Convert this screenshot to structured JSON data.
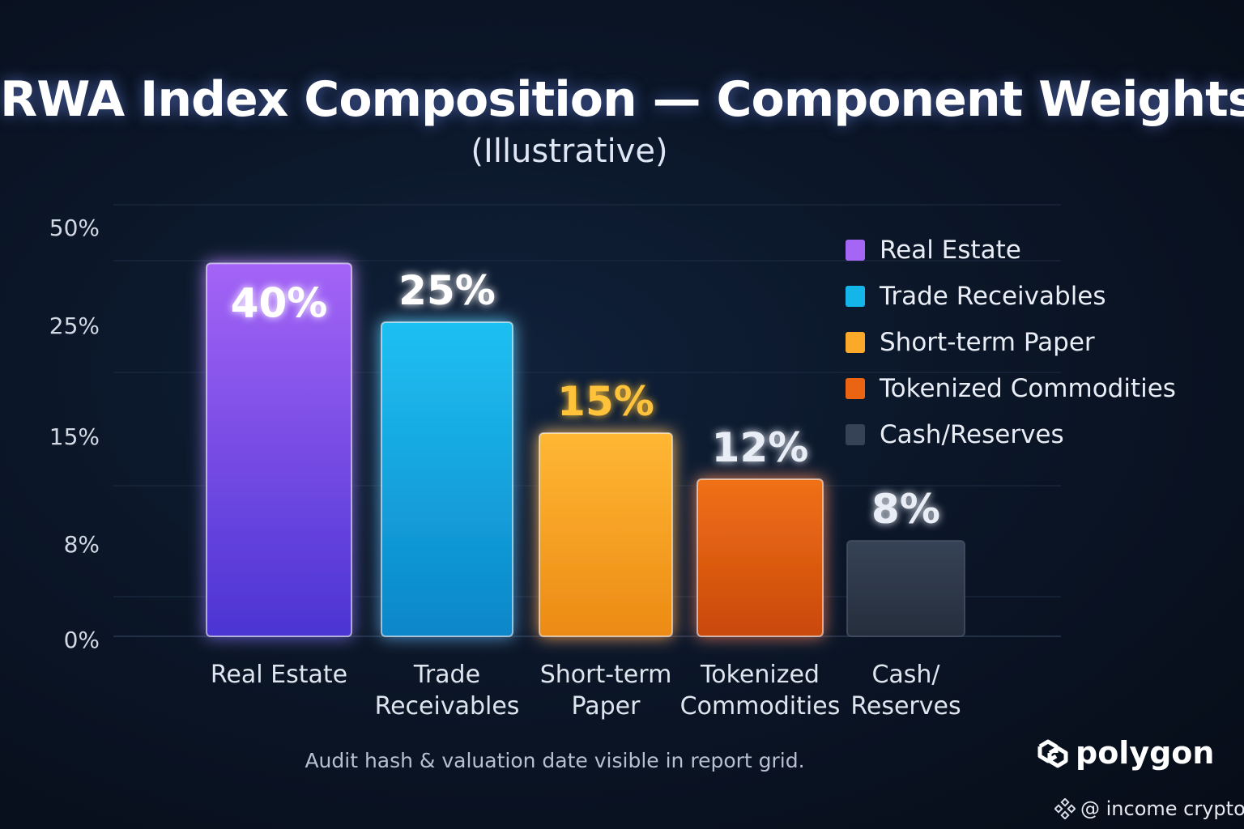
{
  "header": {
    "title": "RWA Index Composition — Component Weights",
    "subtitle": "(Illustrative)"
  },
  "chart_data": {
    "type": "bar",
    "title": "RWA Index Composition — Component Weights",
    "subtitle": "(Illustrative)",
    "categories": [
      "Real Estate",
      "Trade Receivables",
      "Short-term Paper",
      "Tokenized Commodities",
      "Cash/Reserves"
    ],
    "category_label_lines": [
      [
        "Real Estate"
      ],
      [
        "Trade",
        "Receivables"
      ],
      [
        "Short-term",
        "Paper"
      ],
      [
        "Tokenized",
        "Commodities"
      ],
      [
        "Cash/",
        "Reserves"
      ]
    ],
    "values": [
      40,
      25,
      15,
      12,
      8
    ],
    "value_labels": [
      "40%",
      "25%",
      "15%",
      "12%",
      "8%"
    ],
    "colors": [
      "#8e4df0",
      "#14b6ea",
      "#fba92a",
      "#ea6412",
      "#2f3a4b"
    ],
    "value_label_colors": [
      "#ffffff",
      "#ffffff",
      "#ffc23a",
      "#e9edf5",
      "#e9edf5"
    ],
    "y_ticks": [
      0,
      8,
      15,
      25,
      50
    ],
    "y_tick_labels": [
      "0%",
      "8%",
      "15%",
      "25%",
      "50%"
    ],
    "y_scale": "non-linear (tick labels unevenly spaced)",
    "ylim": [
      0,
      50
    ],
    "grid": true,
    "legend": "top-right",
    "xlabel": "",
    "ylabel": ""
  },
  "legend": {
    "items": [
      {
        "label": "Real Estate",
        "color": "#a566f5"
      },
      {
        "label": "Trade Receivables",
        "color": "#14b6ea"
      },
      {
        "label": "Short-term Paper",
        "color": "#fba92a"
      },
      {
        "label": "Tokenized Commodities",
        "color": "#ea6412"
      },
      {
        "label": "Cash/Reserves",
        "color": "#364256"
      }
    ]
  },
  "footnote": "Audit hash & valuation date visible in report grid.",
  "brand": {
    "name": "polygon",
    "icon": "polygon-logo-icon"
  },
  "watermark": {
    "text": "@ income crypto",
    "icon": "binance-diamond-icon"
  }
}
